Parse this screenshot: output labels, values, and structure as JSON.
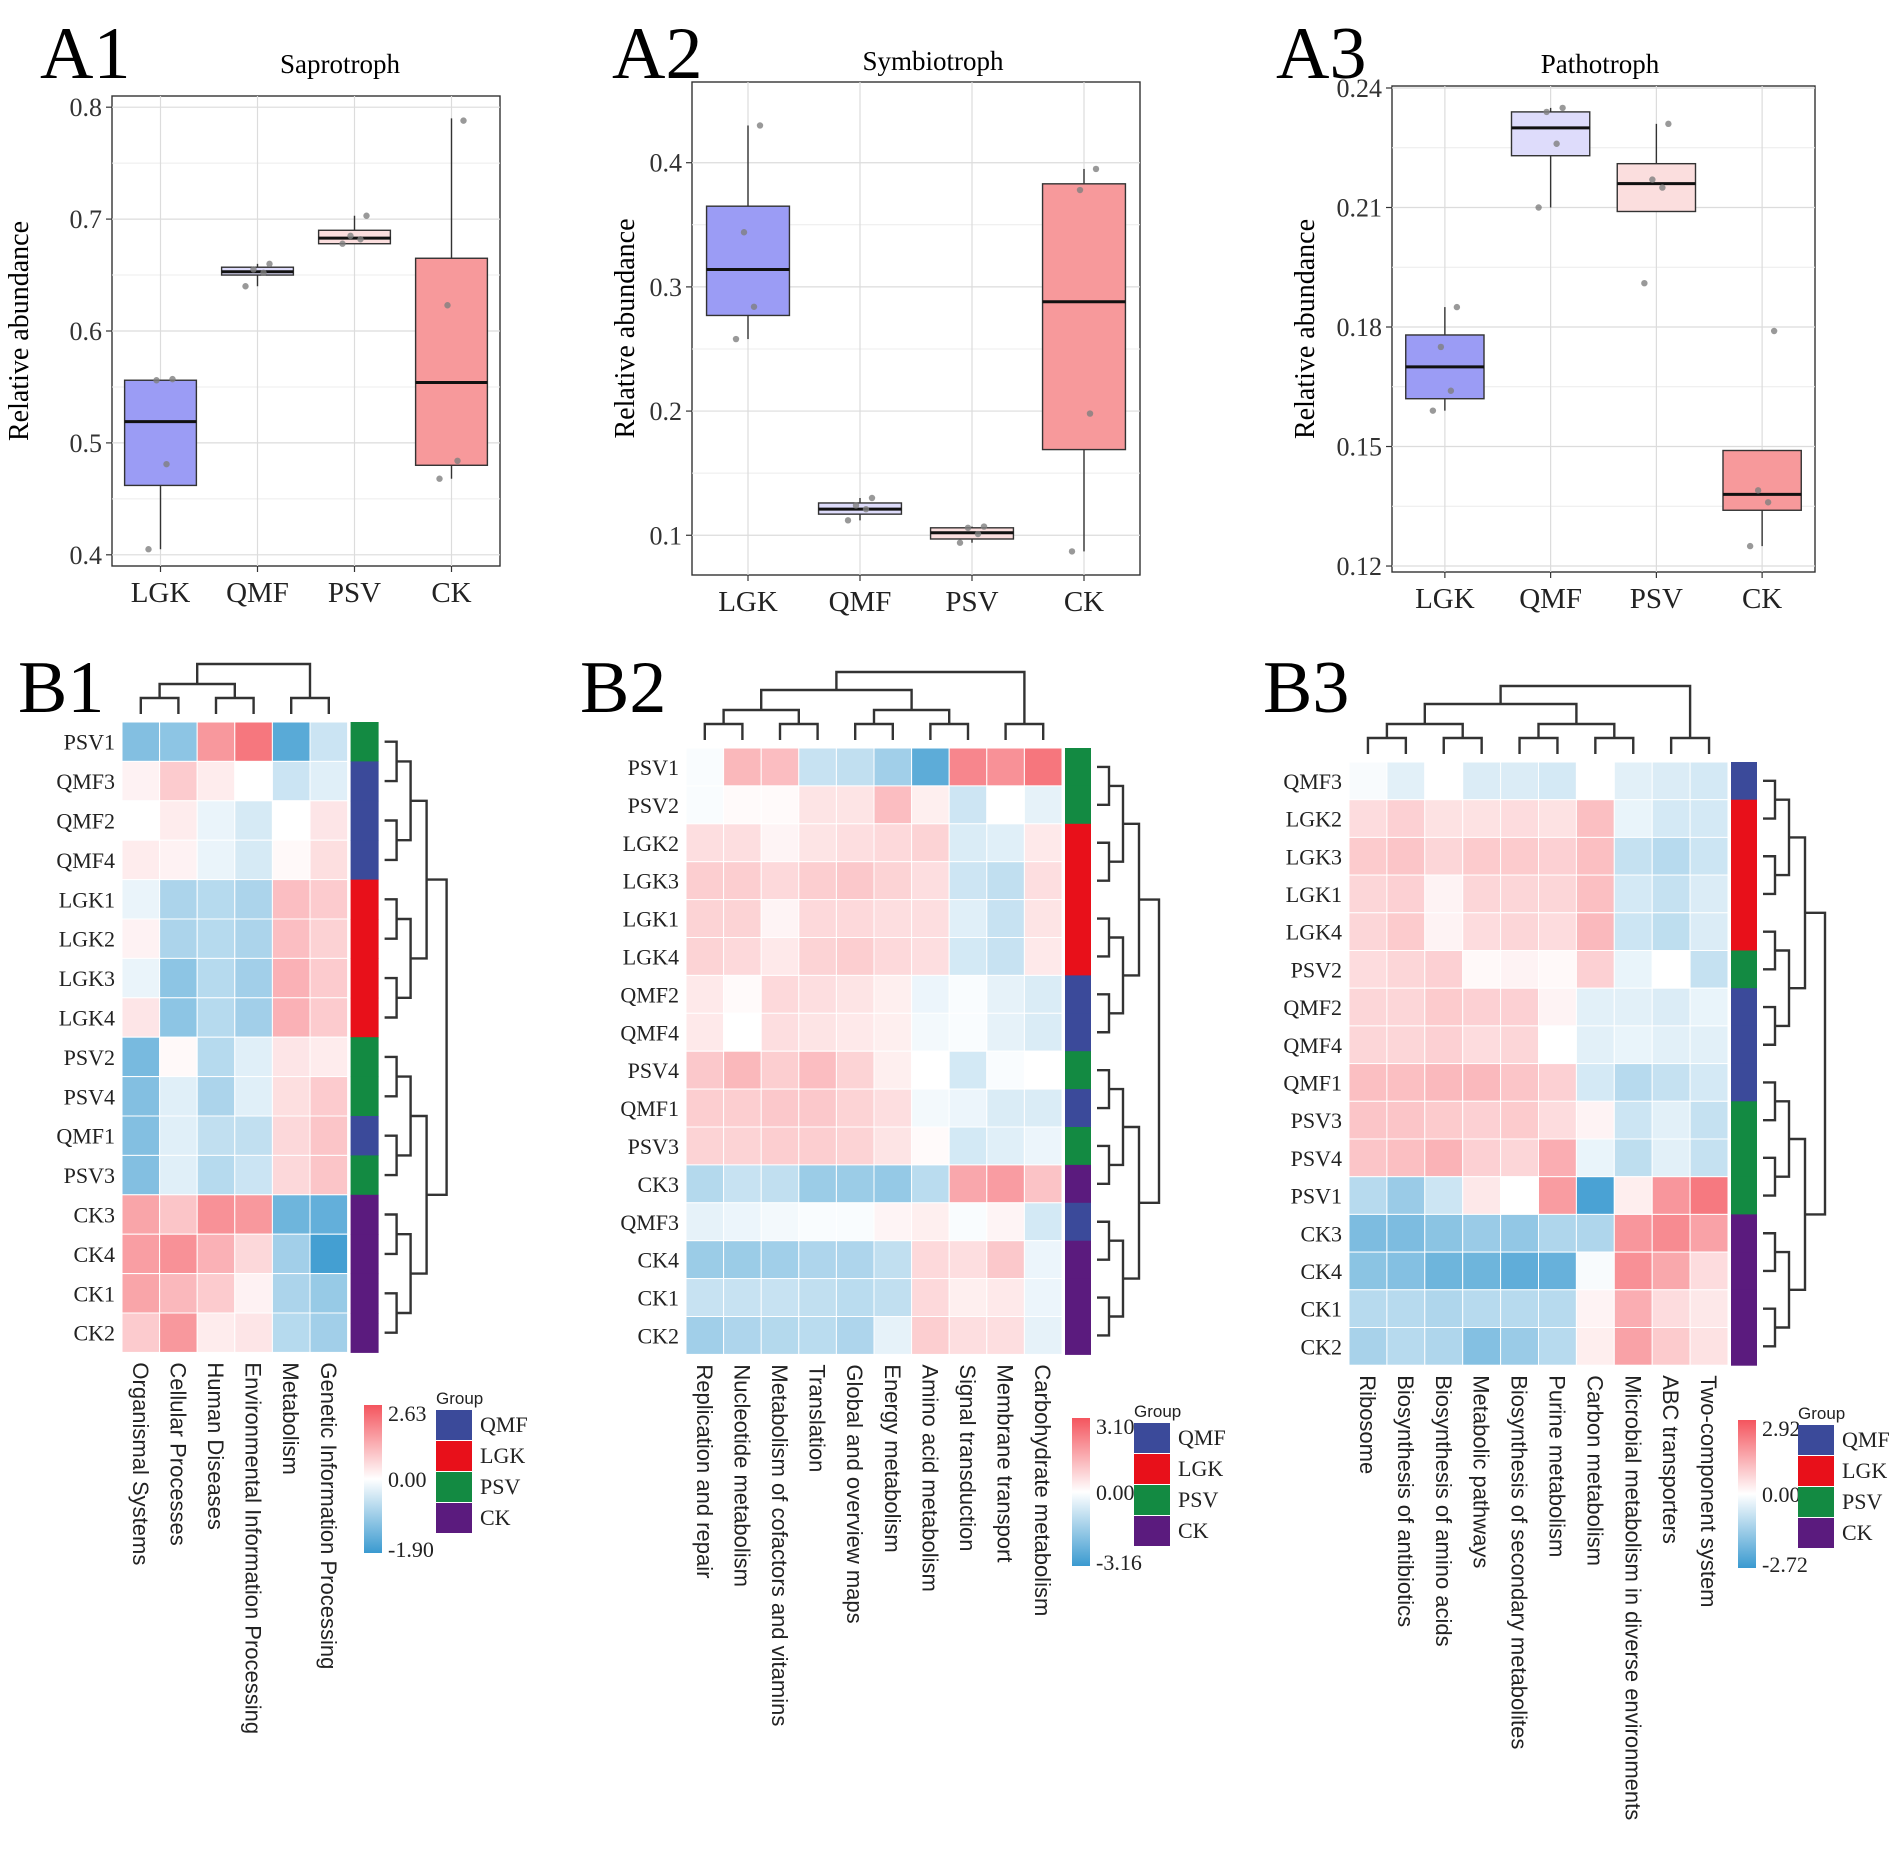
{
  "colors": {
    "QMF": "#3b4a9a",
    "LGK": "#e8101a",
    "PSV": "#138a42",
    "CK": "#5b1b7e",
    "box_LGK": "#9b9cf5",
    "box_QMF": "#dedcfb",
    "box_PSV": "#fbdede",
    "box_CK": "#f7999b",
    "heat_low": "#3a9ad0",
    "heat_mid": "#ffffff",
    "heat_high": "#f4555e"
  },
  "chart_data": [
    {
      "type": "box",
      "panel": "A1",
      "title": "Saprotroph",
      "ylabel": "Relative abundance",
      "ylim": [
        0.39,
        0.81
      ],
      "yticks": [
        "0.4",
        "0.5",
        "0.6",
        "0.7",
        "0.8"
      ],
      "categories": [
        "LGK",
        "QMF",
        "PSV",
        "CK"
      ],
      "boxes": [
        {
          "group": "LGK",
          "whisker_low": 0.405,
          "q1": 0.462,
          "median": 0.519,
          "q3": 0.556,
          "whisker_high": 0.556,
          "points": [
            0.405,
            0.481,
            0.556,
            0.557
          ]
        },
        {
          "group": "QMF",
          "whisker_low": 0.64,
          "q1": 0.65,
          "median": 0.653,
          "q3": 0.657,
          "whisker_high": 0.66,
          "points": [
            0.64,
            0.652,
            0.655,
            0.66
          ]
        },
        {
          "group": "PSV",
          "whisker_low": 0.678,
          "q1": 0.678,
          "median": 0.683,
          "q3": 0.69,
          "whisker_high": 0.703,
          "points": [
            0.678,
            0.682,
            0.685,
            0.703
          ]
        },
        {
          "group": "CK",
          "whisker_low": 0.468,
          "q1": 0.48,
          "median": 0.554,
          "q3": 0.665,
          "whisker_high": 0.79,
          "points": [
            0.468,
            0.484,
            0.623,
            0.788
          ]
        }
      ]
    },
    {
      "type": "box",
      "panel": "A2",
      "title": "Symbiotroph",
      "ylabel": "Relative abundance",
      "ylim": [
        0.068,
        0.465
      ],
      "yticks": [
        "0.1",
        "0.2",
        "0.3",
        "0.4"
      ],
      "categories": [
        "LGK",
        "QMF",
        "PSV",
        "CK"
      ],
      "boxes": [
        {
          "group": "LGK",
          "whisker_low": 0.258,
          "q1": 0.277,
          "median": 0.314,
          "q3": 0.365,
          "whisker_high": 0.43,
          "points": [
            0.258,
            0.284,
            0.344,
            0.43
          ]
        },
        {
          "group": "QMF",
          "whisker_low": 0.112,
          "q1": 0.117,
          "median": 0.121,
          "q3": 0.126,
          "whisker_high": 0.13,
          "points": [
            0.112,
            0.121,
            0.124,
            0.13
          ]
        },
        {
          "group": "PSV",
          "whisker_low": 0.094,
          "q1": 0.097,
          "median": 0.102,
          "q3": 0.106,
          "whisker_high": 0.107,
          "points": [
            0.094,
            0.101,
            0.106,
            0.107
          ]
        },
        {
          "group": "CK",
          "whisker_low": 0.087,
          "q1": 0.169,
          "median": 0.288,
          "q3": 0.383,
          "whisker_high": 0.395,
          "points": [
            0.087,
            0.198,
            0.378,
            0.395
          ]
        }
      ]
    },
    {
      "type": "box",
      "panel": "A3",
      "title": "Pathotroph",
      "ylabel": "Relative abundance",
      "ylim": [
        0.1185,
        0.2405
      ],
      "yticks": [
        "0.12",
        "0.15",
        "0.18",
        "0.21",
        "0.24"
      ],
      "categories": [
        "LGK",
        "QMF",
        "PSV",
        "CK"
      ],
      "boxes": [
        {
          "group": "LGK",
          "whisker_low": 0.159,
          "q1": 0.162,
          "median": 0.17,
          "q3": 0.178,
          "whisker_high": 0.185,
          "points": [
            0.159,
            0.164,
            0.175,
            0.185
          ]
        },
        {
          "group": "QMF",
          "whisker_low": 0.21,
          "q1": 0.223,
          "median": 0.23,
          "q3": 0.234,
          "whisker_high": 0.235,
          "points": [
            0.21,
            0.226,
            0.234,
            0.235
          ]
        },
        {
          "group": "PSV",
          "whisker_low": 0.209,
          "q1": 0.209,
          "median": 0.216,
          "q3": 0.221,
          "whisker_high": 0.231,
          "points": [
            0.191,
            0.215,
            0.217,
            0.231
          ]
        },
        {
          "group": "CK",
          "whisker_low": 0.125,
          "q1": 0.134,
          "median": 0.138,
          "q3": 0.149,
          "whisker_high": 0.149,
          "points": [
            0.125,
            0.136,
            0.139,
            0.179
          ]
        }
      ]
    },
    {
      "type": "heatmap",
      "panel": "B1",
      "rows": [
        "PSV1",
        "QMF3",
        "QMF2",
        "QMF4",
        "LGK1",
        "LGK2",
        "LGK3",
        "LGK4",
        "PSV2",
        "PSV4",
        "QMF1",
        "PSV3",
        "CK3",
        "CK4",
        "CK1",
        "CK2"
      ],
      "row_groups": [
        "PSV",
        "QMF",
        "QMF",
        "QMF",
        "LGK",
        "LGK",
        "LGK",
        "LGK",
        "PSV",
        "PSV",
        "QMF",
        "PSV",
        "CK",
        "CK",
        "CK",
        "CK"
      ],
      "columns": [
        "Organismal Systems",
        "Cellular Processes",
        "Human Diseases",
        "Environmental Information Processing",
        "Metabolism",
        "Genetic Information Processing"
      ],
      "values": [
        [
          -1.2,
          -1.1,
          1.6,
          2.1,
          -1.6,
          -0.5
        ],
        [
          0.2,
          0.8,
          0.3,
          0.0,
          -0.5,
          -0.3
        ],
        [
          0.0,
          0.3,
          -0.2,
          -0.4,
          0.0,
          0.4
        ],
        [
          0.3,
          0.2,
          -0.2,
          -0.4,
          0.1,
          0.5
        ],
        [
          -0.2,
          -0.8,
          -0.7,
          -0.8,
          1.0,
          0.8
        ],
        [
          0.2,
          -0.8,
          -0.7,
          -0.8,
          1.0,
          0.7
        ],
        [
          -0.2,
          -1.1,
          -0.7,
          -0.9,
          1.2,
          0.8
        ],
        [
          0.4,
          -1.1,
          -0.7,
          -0.9,
          1.2,
          0.8
        ],
        [
          -1.3,
          0.1,
          -0.7,
          -0.3,
          0.4,
          0.3
        ],
        [
          -1.2,
          -0.3,
          -0.8,
          -0.3,
          0.5,
          0.8
        ],
        [
          -1.2,
          -0.3,
          -0.6,
          -0.6,
          0.6,
          0.9
        ],
        [
          -1.2,
          -0.3,
          -0.7,
          -0.5,
          0.6,
          0.9
        ],
        [
          1.4,
          0.9,
          1.7,
          1.6,
          -1.4,
          -1.5
        ],
        [
          1.5,
          1.7,
          1.2,
          0.6,
          -0.9,
          -1.8
        ],
        [
          1.4,
          1.1,
          0.8,
          0.2,
          -0.8,
          -1.0
        ],
        [
          0.8,
          1.6,
          0.3,
          0.4,
          -0.7,
          -0.9
        ]
      ],
      "legend": {
        "title": "Group",
        "groups": [
          "QMF",
          "LGK",
          "PSV",
          "CK"
        ]
      },
      "scale": {
        "max_label": "2.63",
        "mid_label": "0.00",
        "min_label": "-1.90",
        "max": 2.63,
        "min": -1.9
      }
    },
    {
      "type": "heatmap",
      "panel": "B2",
      "rows": [
        "PSV1",
        "PSV2",
        "LGK2",
        "LGK3",
        "LGK1",
        "LGK4",
        "QMF2",
        "QMF4",
        "PSV4",
        "QMF1",
        "PSV3",
        "CK3",
        "QMF3",
        "CK4",
        "CK1",
        "CK2"
      ],
      "row_groups": [
        "PSV",
        "PSV",
        "LGK",
        "LGK",
        "LGK",
        "LGK",
        "QMF",
        "QMF",
        "PSV",
        "QMF",
        "PSV",
        "CK",
        "QMF",
        "CK",
        "CK",
        "CK"
      ],
      "columns": [
        "Replication and repair",
        "Nucleotide metabolism",
        "Metabolism of cofactors and vitamins",
        "Translation",
        "Global and overview maps",
        "Energy metabolism",
        "Amino acid metabolism",
        "Signal transduction",
        "Membrane transport",
        "Carbohydrate metabolism"
      ],
      "values": [
        [
          -0.1,
          1.3,
          1.2,
          -0.9,
          -1.0,
          -1.5,
          -2.6,
          2.2,
          2.0,
          2.5
        ],
        [
          -0.1,
          0.1,
          0.1,
          0.5,
          0.5,
          1.2,
          0.3,
          -0.8,
          0.0,
          -0.4
        ],
        [
          0.6,
          0.6,
          0.2,
          0.5,
          0.6,
          0.7,
          0.8,
          -0.6,
          -0.5,
          0.4
        ],
        [
          0.9,
          0.9,
          0.7,
          0.9,
          1.0,
          0.8,
          0.6,
          -0.8,
          -1.0,
          0.6
        ],
        [
          0.8,
          0.8,
          0.2,
          0.7,
          0.7,
          0.6,
          0.6,
          -0.5,
          -0.9,
          0.5
        ],
        [
          0.8,
          0.7,
          0.4,
          0.8,
          0.9,
          0.7,
          0.6,
          -0.7,
          -0.9,
          0.4
        ],
        [
          0.4,
          0.1,
          0.7,
          0.6,
          0.5,
          0.3,
          -0.3,
          -0.1,
          -0.4,
          -0.6
        ],
        [
          0.4,
          0.0,
          0.6,
          0.5,
          0.4,
          0.3,
          -0.2,
          -0.1,
          -0.4,
          -0.6
        ],
        [
          1.0,
          1.3,
          0.9,
          1.2,
          0.8,
          0.3,
          0.0,
          -0.7,
          -0.1,
          0.0
        ],
        [
          0.9,
          0.9,
          1.0,
          1.0,
          0.8,
          0.6,
          -0.2,
          -0.3,
          -0.6,
          -0.6
        ],
        [
          0.8,
          0.8,
          0.9,
          0.9,
          0.8,
          0.5,
          0.1,
          -0.7,
          -0.5,
          -0.3
        ],
        [
          -1.2,
          -0.9,
          -1.0,
          -1.6,
          -1.6,
          -1.7,
          -1.1,
          1.6,
          1.8,
          1.1
        ],
        [
          -0.4,
          -0.3,
          -0.2,
          -0.1,
          -0.1,
          0.2,
          0.3,
          -0.1,
          0.2,
          -0.7
        ],
        [
          -1.6,
          -1.6,
          -1.5,
          -1.3,
          -1.3,
          -1.0,
          0.7,
          0.6,
          1.0,
          -0.3
        ],
        [
          -0.9,
          -0.9,
          -0.9,
          -1.0,
          -1.1,
          -1.0,
          0.7,
          0.3,
          0.4,
          -0.3
        ],
        [
          -1.5,
          -1.3,
          -1.2,
          -1.1,
          -1.3,
          -0.4,
          0.9,
          0.6,
          0.6,
          -0.4
        ]
      ],
      "legend": {
        "title": "Group",
        "groups": [
          "QMF",
          "LGK",
          "PSV",
          "CK"
        ]
      },
      "scale": {
        "max_label": "3.10",
        "mid_label": "0.00",
        "min_label": "-3.16",
        "max": 3.1,
        "min": -3.16
      }
    },
    {
      "type": "heatmap",
      "panel": "B3",
      "rows": [
        "QMF3",
        "LGK2",
        "LGK3",
        "LGK1",
        "LGK4",
        "PSV2",
        "QMF2",
        "QMF4",
        "QMF1",
        "PSV3",
        "PSV4",
        "PSV1",
        "CK3",
        "CK4",
        "CK1",
        "CK2"
      ],
      "row_groups": [
        "QMF",
        "LGK",
        "LGK",
        "LGK",
        "LGK",
        "PSV",
        "QMF",
        "QMF",
        "QMF",
        "PSV",
        "PSV",
        "PSV",
        "CK",
        "CK",
        "CK",
        "CK"
      ],
      "columns": [
        "Ribosome",
        "Biosynthesis of antibiotics",
        "Biosynthesis of amino acids",
        "Metabolic pathways",
        "Biosynthesis of secondary metabolites",
        "Purine metabolism",
        "Carbon metabolism",
        "Microbial metabolism in diverse environments",
        "ABC transporters",
        "Two-component system"
      ],
      "values": [
        [
          -0.1,
          -0.4,
          0.0,
          -0.5,
          -0.5,
          -0.6,
          0.0,
          -0.4,
          -0.5,
          -0.6
        ],
        [
          0.6,
          0.8,
          0.5,
          0.5,
          0.6,
          0.5,
          1.1,
          -0.3,
          -0.6,
          -0.6
        ],
        [
          0.9,
          1.0,
          0.7,
          0.9,
          0.9,
          0.8,
          1.1,
          -0.8,
          -1.0,
          -0.7
        ],
        [
          0.7,
          0.8,
          0.2,
          0.7,
          0.7,
          0.7,
          1.1,
          -0.6,
          -0.8,
          -0.5
        ],
        [
          0.7,
          0.9,
          0.2,
          0.6,
          0.7,
          0.6,
          1.2,
          -0.7,
          -0.9,
          -0.5
        ],
        [
          0.6,
          0.7,
          0.8,
          0.1,
          0.2,
          0.1,
          0.8,
          -0.3,
          0.0,
          -0.8
        ],
        [
          0.7,
          0.7,
          0.9,
          0.8,
          0.8,
          0.2,
          -0.4,
          -0.4,
          -0.5,
          -0.3
        ],
        [
          0.7,
          0.7,
          0.8,
          0.6,
          0.7,
          0.0,
          -0.4,
          -0.3,
          -0.4,
          -0.4
        ],
        [
          1.1,
          1.1,
          1.2,
          1.2,
          1.0,
          0.8,
          -0.6,
          -1.0,
          -0.8,
          -0.6
        ],
        [
          1.0,
          1.0,
          0.9,
          0.8,
          0.9,
          0.6,
          0.2,
          -0.7,
          -0.4,
          -0.8
        ],
        [
          1.0,
          1.1,
          1.3,
          0.8,
          0.7,
          1.4,
          -0.3,
          -0.9,
          -0.4,
          -0.8
        ],
        [
          -1.0,
          -1.4,
          -0.7,
          0.4,
          0.0,
          1.7,
          -2.5,
          0.3,
          1.8,
          2.3
        ],
        [
          -1.8,
          -1.8,
          -1.6,
          -1.4,
          -1.5,
          -1.1,
          -1.1,
          1.8,
          2.0,
          1.6
        ],
        [
          -1.6,
          -1.7,
          -2.0,
          -2.0,
          -2.2,
          -2.1,
          -0.1,
          1.9,
          1.5,
          0.6
        ],
        [
          -1.0,
          -1.0,
          -1.1,
          -1.0,
          -1.0,
          -1.0,
          0.2,
          1.4,
          0.6,
          0.4
        ],
        [
          -1.2,
          -1.0,
          -1.1,
          -1.7,
          -1.4,
          -1.0,
          0.3,
          1.6,
          0.9,
          0.5
        ]
      ],
      "legend": {
        "title": "Group",
        "groups": [
          "QMF",
          "LGK",
          "PSV",
          "CK"
        ]
      },
      "scale": {
        "max_label": "2.92",
        "mid_label": "0.00",
        "min_label": "-2.72",
        "max": 2.92,
        "min": -2.72
      }
    }
  ]
}
